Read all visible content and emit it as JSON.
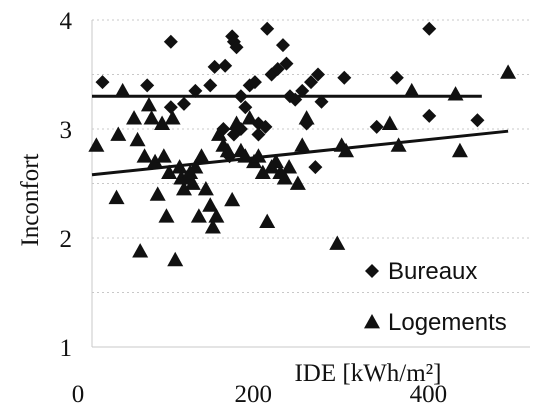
{
  "chart_data": {
    "type": "scatter",
    "xlabel": "IDE [kWh/m²]",
    "ylabel": "Inconfort",
    "xlim": [
      0,
      500
    ],
    "ylim": [
      1,
      4
    ],
    "x_ticks": [
      0,
      200,
      400
    ],
    "y_ticks": [
      1,
      2,
      3,
      4
    ],
    "grid": "horizontal dotted",
    "legend_position": "bottom-right",
    "series": [
      {
        "name": "Bureaux",
        "marker": "diamond",
        "color": "#111111",
        "points": [
          [
            12,
            3.43
          ],
          [
            63,
            3.4
          ],
          [
            90,
            3.8
          ],
          [
            105,
            3.23
          ],
          [
            90,
            3.2
          ],
          [
            118,
            3.35
          ],
          [
            135,
            3.4
          ],
          [
            140,
            3.57
          ],
          [
            152,
            3.58
          ],
          [
            160,
            3.85
          ],
          [
            162,
            3.8
          ],
          [
            165,
            3.75
          ],
          [
            170,
            3.3
          ],
          [
            175,
            3.2
          ],
          [
            180,
            3.4
          ],
          [
            186,
            3.43
          ],
          [
            190,
            3.05
          ],
          [
            200,
            3.92
          ],
          [
            205,
            3.5
          ],
          [
            212,
            3.55
          ],
          [
            218,
            3.77
          ],
          [
            222,
            3.6
          ],
          [
            226,
            3.3
          ],
          [
            232,
            3.27
          ],
          [
            240,
            3.35
          ],
          [
            250,
            3.43
          ],
          [
            258,
            3.5
          ],
          [
            262,
            3.25
          ],
          [
            255,
            2.65
          ],
          [
            245,
            3.05
          ],
          [
            150,
            3.0
          ],
          [
            157,
            2.75
          ],
          [
            170,
            3.0
          ],
          [
            190,
            2.95
          ],
          [
            198,
            3.02
          ],
          [
            162,
            2.95
          ],
          [
            288,
            3.47
          ],
          [
            325,
            3.02
          ],
          [
            348,
            3.47
          ],
          [
            385,
            3.12
          ],
          [
            385,
            3.92
          ],
          [
            440,
            3.08
          ]
        ]
      },
      {
        "name": "Logements",
        "marker": "triangle",
        "color": "#111111",
        "points": [
          [
            5,
            2.85
          ],
          [
            28,
            2.37
          ],
          [
            35,
            3.35
          ],
          [
            30,
            2.95
          ],
          [
            48,
            3.1
          ],
          [
            52,
            2.9
          ],
          [
            55,
            1.88
          ],
          [
            60,
            2.75
          ],
          [
            65,
            3.22
          ],
          [
            68,
            3.1
          ],
          [
            72,
            2.7
          ],
          [
            75,
            2.4
          ],
          [
            80,
            3.05
          ],
          [
            82,
            2.75
          ],
          [
            85,
            2.2
          ],
          [
            88,
            2.6
          ],
          [
            92,
            3.1
          ],
          [
            95,
            1.8
          ],
          [
            100,
            2.65
          ],
          [
            102,
            2.55
          ],
          [
            105,
            2.45
          ],
          [
            108,
            2.55
          ],
          [
            112,
            2.6
          ],
          [
            115,
            2.5
          ],
          [
            118,
            2.65
          ],
          [
            122,
            2.2
          ],
          [
            125,
            2.75
          ],
          [
            130,
            2.45
          ],
          [
            135,
            2.3
          ],
          [
            138,
            2.1
          ],
          [
            142,
            2.2
          ],
          [
            145,
            2.95
          ],
          [
            150,
            2.85
          ],
          [
            155,
            2.8
          ],
          [
            160,
            2.35
          ],
          [
            165,
            3.05
          ],
          [
            170,
            2.8
          ],
          [
            175,
            2.75
          ],
          [
            180,
            3.1
          ],
          [
            185,
            2.7
          ],
          [
            190,
            2.75
          ],
          [
            195,
            2.6
          ],
          [
            200,
            2.15
          ],
          [
            205,
            2.65
          ],
          [
            210,
            2.7
          ],
          [
            215,
            2.6
          ],
          [
            220,
            2.55
          ],
          [
            225,
            2.65
          ],
          [
            235,
            2.5
          ],
          [
            240,
            2.85
          ],
          [
            245,
            3.1
          ],
          [
            280,
            1.95
          ],
          [
            285,
            2.85
          ],
          [
            290,
            2.8
          ],
          [
            340,
            3.05
          ],
          [
            350,
            2.85
          ],
          [
            365,
            3.35
          ],
          [
            415,
            3.32
          ],
          [
            420,
            2.8
          ],
          [
            475,
            3.52
          ]
        ]
      }
    ],
    "trendlines": [
      {
        "series": "Bureaux",
        "x": [
          0,
          445
        ],
        "y": [
          3.3,
          3.3
        ]
      },
      {
        "series": "Logements",
        "x": [
          0,
          475
        ],
        "y": [
          2.58,
          2.98
        ]
      }
    ]
  }
}
